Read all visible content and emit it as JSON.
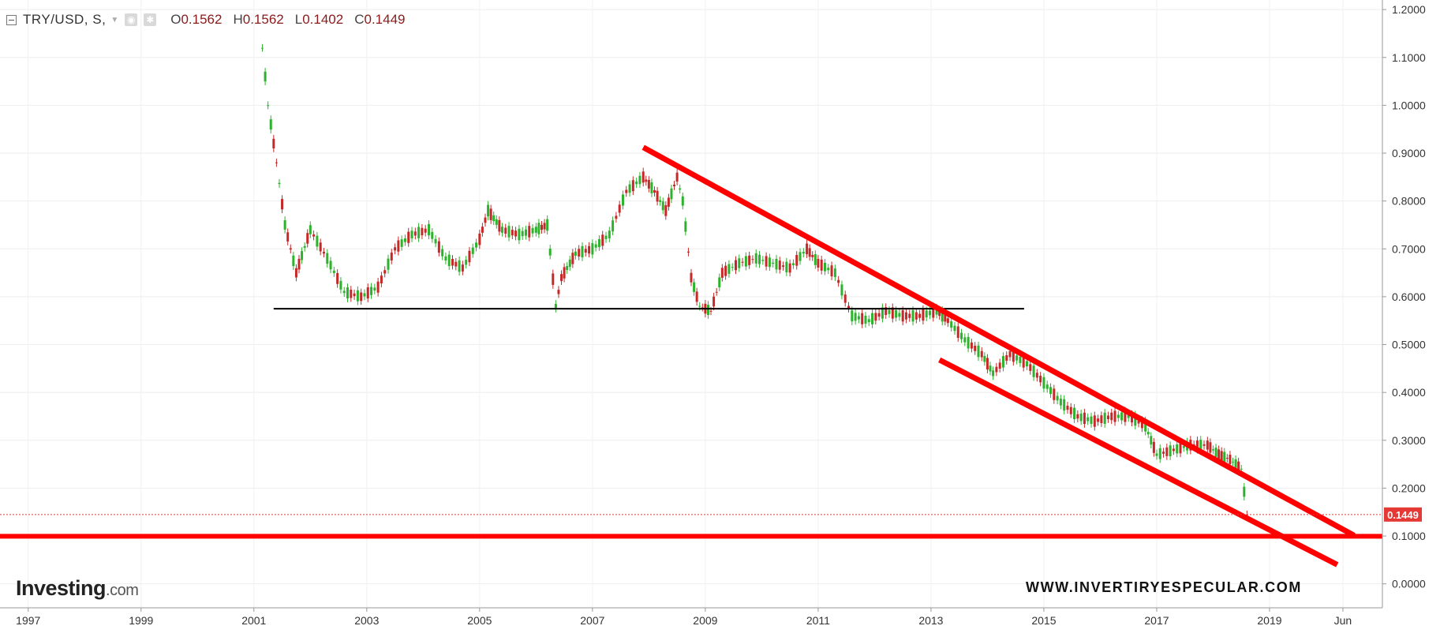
{
  "legend": {
    "symbol": "TRY/USD, S,",
    "open_label": "O",
    "open": "0.1562",
    "high_label": "H",
    "high": "0.1562",
    "low_label": "L",
    "low": "0.1402",
    "close_label": "C",
    "close": "0.1449"
  },
  "logo": {
    "brand": "Investing",
    "domain": ".com"
  },
  "watermark": "WWW.INVERTIRYESPECULAR.COM",
  "chart_data": {
    "type": "candlestick",
    "ylim": [
      -0.05,
      1.22
    ],
    "xlim": [
      1996.5,
      2021.0
    ],
    "y_ticks": [
      "1.2000",
      "1.1000",
      "1.0000",
      "0.9000",
      "0.8000",
      "0.7000",
      "0.6000",
      "0.5000",
      "0.4000",
      "0.3000",
      "0.2000",
      "0.1000",
      "0.0000"
    ],
    "y_tick_values": [
      1.2,
      1.1,
      1.0,
      0.9,
      0.8,
      0.7,
      0.6,
      0.5,
      0.4,
      0.3,
      0.2,
      0.1,
      0.0
    ],
    "x_ticks": [
      "1997",
      "1999",
      "2001",
      "2003",
      "2005",
      "2007",
      "2009",
      "2011",
      "2013",
      "2015",
      "2017",
      "2019",
      "Jun"
    ],
    "x_tick_values": [
      1997,
      1999,
      2001,
      2003,
      2005,
      2007,
      2009,
      2011,
      2013,
      2015,
      2017,
      2019,
      2020.3
    ],
    "last_price_label": "0.1449",
    "last_price": 0.1449,
    "series": [
      {
        "x": [
          2001.15,
          2001.25,
          2001.4,
          2001.55,
          2001.75,
          2002.0,
          2002.3,
          2002.6,
          2002.9,
          2003.2,
          2003.5,
          2003.8,
          2004.1,
          2004.4,
          2004.7,
          2005.0,
          2005.15,
          2005.4,
          2005.7,
          2006.0,
          2006.2,
          2006.35,
          2006.45,
          2006.7,
          2007.0,
          2007.3,
          2007.6,
          2007.9,
          2008.1,
          2008.3,
          2008.5,
          2008.6,
          2008.75,
          2008.9,
          2009.1,
          2009.3,
          2009.6,
          2009.9,
          2010.2,
          2010.5,
          2010.8,
          2011.0,
          2011.3,
          2011.6,
          2011.9,
          2012.2,
          2012.5,
          2012.8,
          2013.1,
          2013.3,
          2013.6,
          2013.9,
          2014.1,
          2014.4,
          2014.7,
          2015.0,
          2015.3,
          2015.6,
          2015.9,
          2016.2,
          2016.5,
          2016.8,
          2017.0,
          2017.3,
          2017.6,
          2017.9,
          2018.1,
          2018.3,
          2018.5,
          2018.6
        ],
        "y": [
          1.12,
          1.0,
          0.88,
          0.75,
          0.65,
          0.74,
          0.68,
          0.61,
          0.6,
          0.62,
          0.7,
          0.73,
          0.74,
          0.68,
          0.66,
          0.72,
          0.78,
          0.74,
          0.73,
          0.74,
          0.75,
          0.58,
          0.64,
          0.69,
          0.7,
          0.73,
          0.82,
          0.85,
          0.82,
          0.78,
          0.85,
          0.8,
          0.64,
          0.58,
          0.57,
          0.65,
          0.67,
          0.68,
          0.67,
          0.66,
          0.7,
          0.67,
          0.65,
          0.56,
          0.55,
          0.57,
          0.56,
          0.56,
          0.57,
          0.55,
          0.51,
          0.48,
          0.44,
          0.48,
          0.46,
          0.42,
          0.38,
          0.35,
          0.34,
          0.35,
          0.35,
          0.33,
          0.27,
          0.28,
          0.29,
          0.29,
          0.27,
          0.26,
          0.24,
          0.1449
        ]
      }
    ],
    "annotations": [
      {
        "type": "hline",
        "color": "#000000",
        "y": 0.575,
        "x_from": 2001.35,
        "x_to": 2014.65
      },
      {
        "type": "hline",
        "color": "#ff0000",
        "y": 0.0995,
        "x_from": 1996.5,
        "x_to": 2021.0
      },
      {
        "type": "trendline",
        "color": "#ff0000",
        "from": [
          2007.9,
          0.912
        ],
        "to": [
          2020.5,
          0.101
        ]
      },
      {
        "type": "trendline",
        "color": "#ff0000",
        "from": [
          2013.15,
          0.468
        ],
        "to": [
          2020.2,
          0.04
        ]
      }
    ]
  }
}
